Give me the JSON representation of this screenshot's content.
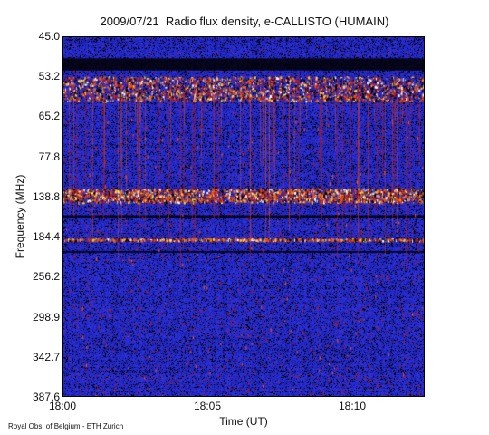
{
  "chart_data": {
    "type": "heatmap",
    "title": "2009/07/21  Radio flux density, e-CALLISTO (HUMAIN)",
    "xlabel": "Time (UT)",
    "ylabel": "Frequency (MHz)",
    "x_tick_labels": [
      "18:00",
      "18:05",
      "18:10"
    ],
    "x_tick_values_min": [
      0,
      5,
      10
    ],
    "x_range_min": [
      0,
      12.5
    ],
    "y_tick_labels": [
      "45.0",
      "53.2",
      "65.2",
      "77.8",
      "138.8",
      "184.4",
      "256.2",
      "298.9",
      "342.7",
      "387.6"
    ],
    "y_range_mhz": [
      45.0,
      387.6
    ],
    "y_direction": "frequency increases downward",
    "colormap": [
      "#000000",
      "#1a1fa8",
      "#2a30d8",
      "#b51d1d",
      "#ff5a00",
      "#ffd23a",
      "#ffffff"
    ],
    "background_color": "#1c24b6",
    "bright_bands_mhz": [
      {
        "from": 53.2,
        "to": 60.5,
        "intensity": "strong"
      },
      {
        "from": 126.0,
        "to": 145.0,
        "intensity": "strong"
      },
      {
        "from": 187.5,
        "to": 189.5,
        "intensity": "moderate"
      }
    ],
    "dark_bands_mhz": [
      {
        "from": 49.5,
        "to": 52.0
      },
      {
        "from": 160.0,
        "to": 163.0
      },
      {
        "from": 210.0,
        "to": 212.0
      }
    ],
    "grid": false
  },
  "footer": {
    "credit": "Royal Obs. of Belgium - ETH Zurich"
  }
}
